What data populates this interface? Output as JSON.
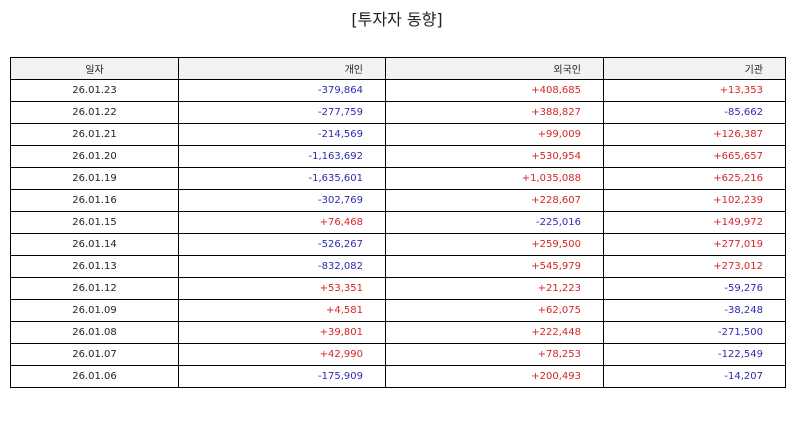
{
  "title": "[투자자 동향]",
  "colors": {
    "positive": "#d42525",
    "negative": "#2b2bb0"
  },
  "columns": [
    "일자",
    "개인",
    "외국인",
    "기관"
  ],
  "rows": [
    [
      "26.01.23",
      "-379,864",
      "+408,685",
      "+13,353"
    ],
    [
      "26.01.22",
      "-277,759",
      "+388,827",
      "-85,662"
    ],
    [
      "26.01.21",
      "-214,569",
      "+99,009",
      "+126,387"
    ],
    [
      "26.01.20",
      "-1,163,692",
      "+530,954",
      "+665,657"
    ],
    [
      "26.01.19",
      "-1,635,601",
      "+1,035,088",
      "+625,216"
    ],
    [
      "26.01.16",
      "-302,769",
      "+228,607",
      "+102,239"
    ],
    [
      "26.01.15",
      "+76,468",
      "-225,016",
      "+149,972"
    ],
    [
      "26.01.14",
      "-526,267",
      "+259,500",
      "+277,019"
    ],
    [
      "26.01.13",
      "-832,082",
      "+545,979",
      "+273,012"
    ],
    [
      "26.01.12",
      "+53,351",
      "+21,223",
      "-59,276"
    ],
    [
      "26.01.09",
      "+4,581",
      "+62,075",
      "-38,248"
    ],
    [
      "26.01.08",
      "+39,801",
      "+222,448",
      "-271,500"
    ],
    [
      "26.01.07",
      "+42,990",
      "+78,253",
      "-122,549"
    ],
    [
      "26.01.06",
      "-175,909",
      "+200,493",
      "-14,207"
    ]
  ]
}
